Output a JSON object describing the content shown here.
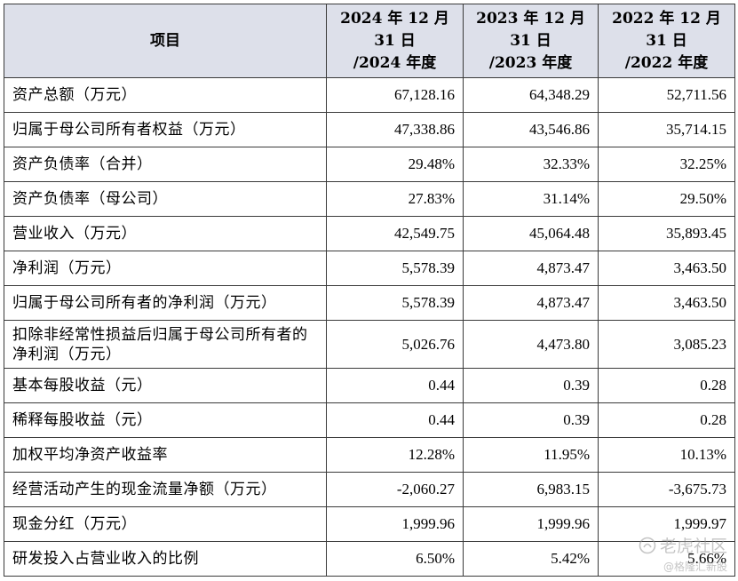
{
  "table": {
    "headers": [
      "项目",
      "2024 年 12 月\n31 日\n/2024 年度",
      "2023 年 12 月\n31 日\n/2023 年度",
      "2022 年 12 月\n31 日\n/2022 年度"
    ],
    "rows": [
      {
        "label": "资产总额（万元）",
        "values": [
          "67,128.16",
          "64,348.29",
          "52,711.56"
        ]
      },
      {
        "label": "归属于母公司所有者权益（万元）",
        "values": [
          "47,338.86",
          "43,546.86",
          "35,714.15"
        ]
      },
      {
        "label": "资产负债率（合并）",
        "values": [
          "29.48%",
          "32.33%",
          "32.25%"
        ]
      },
      {
        "label": "资产负债率（母公司）",
        "values": [
          "27.83%",
          "31.14%",
          "29.50%"
        ]
      },
      {
        "label": "营业收入（万元）",
        "values": [
          "42,549.75",
          "45,064.48",
          "35,893.45"
        ]
      },
      {
        "label": "净利润（万元）",
        "values": [
          "5,578.39",
          "4,873.47",
          "3,463.50"
        ]
      },
      {
        "label": "归属于母公司所有者的净利润（万元）",
        "values": [
          "5,578.39",
          "4,873.47",
          "3,463.50"
        ]
      },
      {
        "label": "扣除非经常性损益后归属于母公司所有者的净利润（万元）",
        "values": [
          "5,026.76",
          "4,473.80",
          "3,085.23"
        ],
        "tall": true
      },
      {
        "label": "基本每股收益（元）",
        "values": [
          "0.44",
          "0.39",
          "0.28"
        ]
      },
      {
        "label": "稀释每股收益（元）",
        "values": [
          "0.44",
          "0.39",
          "0.28"
        ]
      },
      {
        "label": "加权平均净资产收益率",
        "values": [
          "12.28%",
          "11.95%",
          "10.13%"
        ]
      },
      {
        "label": "经营活动产生的现金流量净额（万元）",
        "values": [
          "-2,060.27",
          "6,983.15",
          "-3,675.73"
        ]
      },
      {
        "label": "现金分红（万元）",
        "values": [
          "1,999.96",
          "1,999.96",
          "1,999.97"
        ]
      },
      {
        "label": "研发投入占营业收入的比例",
        "values": [
          "6.50%",
          "5.42%",
          "5.66%"
        ]
      }
    ]
  },
  "watermark": {
    "main": "老虎社区",
    "sub": "@格隆汇新股"
  }
}
